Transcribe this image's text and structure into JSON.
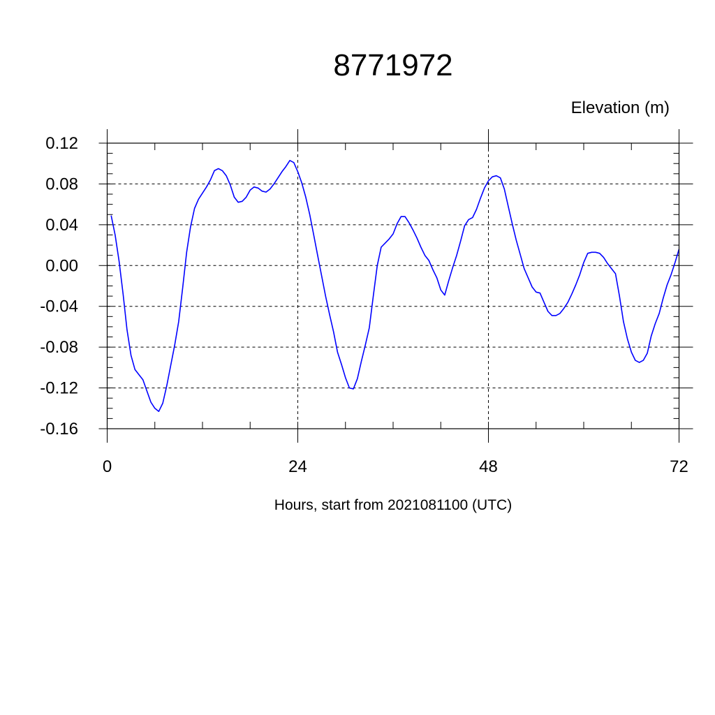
{
  "chart_data": {
    "type": "line",
    "title": "8771972",
    "ylabel": "Elevation (m)",
    "xlabel": "Hours, start from 2021081100 (UTC)",
    "xlim": [
      0,
      72
    ],
    "ylim": [
      -0.16,
      0.12
    ],
    "x_ticks": [
      0,
      24,
      48,
      72
    ],
    "x_tick_labels": [
      "0",
      "24",
      "48",
      "72"
    ],
    "y_ticks": [
      -0.16,
      -0.12,
      -0.08,
      -0.04,
      0.0,
      0.04,
      0.08,
      0.12
    ],
    "y_tick_labels": [
      "-0.16",
      "-0.12",
      "-0.08",
      "-0.04",
      "0.00",
      "0.04",
      "0.08",
      "0.12"
    ],
    "grid": true,
    "series": [
      {
        "color": "#0000ff",
        "x": [
          0.5,
          1.0,
          1.5,
          2.0,
          2.5,
          3.0,
          3.5,
          4.0,
          4.5,
          5.0,
          5.5,
          6.0,
          6.5,
          7.0,
          7.5,
          8.0,
          8.5,
          9.0,
          9.5,
          10.0,
          10.5,
          11.0,
          11.5,
          12.0,
          12.5,
          13.0,
          13.5,
          14.0,
          14.5,
          15.0,
          15.5,
          16.0,
          16.5,
          17.0,
          17.5,
          18.0,
          18.5,
          19.0,
          19.5,
          20.0,
          20.5,
          21.0,
          21.5,
          22.0,
          22.5,
          23.0,
          23.5,
          24.0,
          24.5,
          25.0,
          25.5,
          26.0,
          26.5,
          27.0,
          27.5,
          28.0,
          28.5,
          29.0,
          29.5,
          30.0,
          30.5,
          31.0,
          31.5,
          32.0,
          32.5,
          33.0,
          33.5,
          34.0,
          34.5,
          35.0,
          35.5,
          36.0,
          36.5,
          37.0,
          37.5,
          38.0,
          38.5,
          39.0,
          39.5,
          40.0,
          40.5,
          41.0,
          41.5,
          42.0,
          42.5,
          43.0,
          43.5,
          44.0,
          44.5,
          45.0,
          45.5,
          46.0,
          46.5,
          47.0,
          47.5,
          48.0,
          48.5,
          49.0,
          49.5,
          50.0,
          50.5,
          51.0,
          51.5,
          52.0,
          52.5,
          53.0,
          53.5,
          54.0,
          54.5,
          55.0,
          55.5,
          56.0,
          56.5,
          57.0,
          57.5,
          58.0,
          58.5,
          59.0,
          59.5,
          60.0,
          60.5,
          61.0,
          61.5,
          62.0,
          62.5,
          63.0,
          63.5,
          64.0,
          64.5,
          65.0,
          65.5,
          66.0,
          66.5,
          67.0,
          67.5,
          68.0,
          68.5,
          69.0,
          69.5,
          70.0,
          70.5,
          71.0,
          71.5,
          72.0
        ],
        "y": [
          0.049,
          0.03,
          0.004,
          -0.028,
          -0.063,
          -0.088,
          -0.102,
          -0.107,
          -0.112,
          -0.123,
          -0.134,
          -0.14,
          -0.143,
          -0.135,
          -0.118,
          -0.098,
          -0.078,
          -0.055,
          -0.022,
          0.013,
          0.038,
          0.056,
          0.065,
          0.071,
          0.077,
          0.084,
          0.093,
          0.095,
          0.093,
          0.088,
          0.079,
          0.067,
          0.062,
          0.063,
          0.067,
          0.074,
          0.077,
          0.076,
          0.073,
          0.072,
          0.075,
          0.08,
          0.086,
          0.092,
          0.097,
          0.103,
          0.101,
          0.092,
          0.081,
          0.067,
          0.05,
          0.03,
          0.01,
          -0.01,
          -0.03,
          -0.048,
          -0.065,
          -0.085,
          -0.097,
          -0.11,
          -0.12,
          -0.121,
          -0.111,
          -0.094,
          -0.078,
          -0.061,
          -0.03,
          0.0,
          0.018,
          0.022,
          0.026,
          0.031,
          0.041,
          0.048,
          0.048,
          0.042,
          0.035,
          0.027,
          0.018,
          0.01,
          0.005,
          -0.004,
          -0.012,
          -0.024,
          -0.029,
          -0.015,
          -0.002,
          0.01,
          0.024,
          0.039,
          0.045,
          0.047,
          0.055,
          0.066,
          0.076,
          0.083,
          0.087,
          0.088,
          0.086,
          0.075,
          0.058,
          0.041,
          0.025,
          0.011,
          -0.003,
          -0.012,
          -0.021,
          -0.026,
          -0.027,
          -0.036,
          -0.045,
          -0.049,
          -0.049,
          -0.047,
          -0.042,
          -0.036,
          -0.028,
          -0.019,
          -0.009,
          0.003,
          0.012,
          0.013,
          0.013,
          0.012,
          0.008,
          0.002,
          -0.003,
          -0.008,
          -0.03,
          -0.055,
          -0.072,
          -0.085,
          -0.093,
          -0.095,
          -0.093,
          -0.086,
          -0.069,
          -0.057,
          -0.047,
          -0.032,
          -0.019,
          -0.009,
          0.003,
          0.016
        ]
      }
    ]
  }
}
